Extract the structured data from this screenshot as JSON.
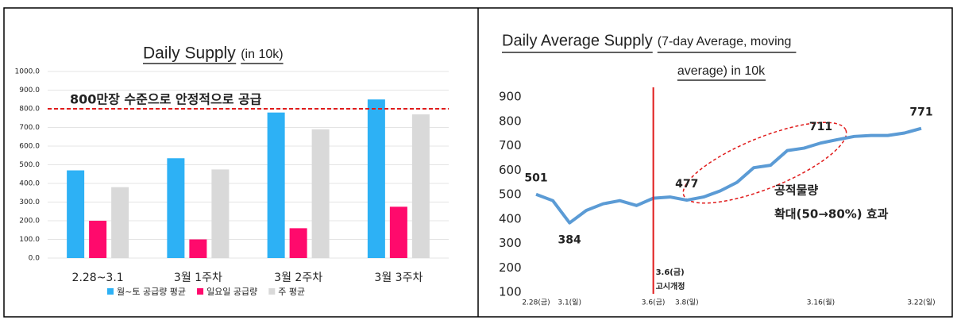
{
  "chart_data": [
    {
      "type": "bar",
      "title": "Daily Supply",
      "subtitle": "(in 10k)",
      "categories": [
        "2.28~3.1",
        "3월 1주차",
        "3월 2주차",
        "3월 3주차"
      ],
      "series": [
        {
          "name": "월~토 공급량 평균",
          "color": "#2db1f5",
          "values": [
            470,
            535,
            780,
            850
          ]
        },
        {
          "name": "일요일 공급량",
          "color": "#ff0a6c",
          "values": [
            200,
            100,
            160,
            275
          ]
        },
        {
          "name": "주 평균",
          "color": "#d9d9d9",
          "values": [
            380,
            475,
            690,
            770
          ]
        }
      ],
      "ylim": [
        0,
        1000
      ],
      "yticks": [
        {
          "value": 0,
          "label": "0.0"
        },
        {
          "value": 100,
          "label": "100.0"
        },
        {
          "value": 200,
          "label": "200.0"
        },
        {
          "value": 300,
          "label": "300.0"
        },
        {
          "value": 400,
          "label": "400.0"
        },
        {
          "value": 500,
          "label": "500.0"
        },
        {
          "value": 600,
          "label": "600.0"
        },
        {
          "value": 700,
          "label": "700.0"
        },
        {
          "value": 800,
          "label": "800.0"
        },
        {
          "value": 900,
          "label": "900.0"
        },
        {
          "value": 1000,
          "label": "1000.0"
        }
      ],
      "grid": true,
      "reference_line": {
        "y": 800,
        "label": "800만장 수준으로 안정적으로 공급",
        "color": "#e01b1b"
      },
      "legend": "bottom"
    },
    {
      "type": "line",
      "title": "Daily Average Supply",
      "subtitle": "(7-day Average, moving average) in 10k",
      "categories": [
        "2.28(금)",
        null,
        "3.1(일)",
        null,
        null,
        null,
        null,
        "3.6(금)",
        null,
        "3.8(일)",
        null,
        null,
        null,
        null,
        null,
        null,
        null,
        "3.16(월)",
        null,
        null,
        null,
        null,
        null,
        "3.22(일)"
      ],
      "series": [
        {
          "name": null,
          "color": "#5b9bd5",
          "values": [
            501,
            475,
            384,
            435,
            462,
            475,
            455,
            485,
            490,
            477,
            490,
            515,
            550,
            610,
            620,
            680,
            690,
            711,
            725,
            738,
            742,
            742,
            752,
            771
          ],
          "value_labels": [
            "501",
            null,
            "384",
            null,
            null,
            null,
            null,
            null,
            null,
            "477",
            null,
            null,
            null,
            null,
            null,
            null,
            null,
            "711",
            null,
            null,
            null,
            null,
            null,
            "771"
          ]
        }
      ],
      "ylim": [
        100,
        900
      ],
      "yticks": [
        100,
        200,
        300,
        400,
        500,
        600,
        700,
        800,
        900
      ],
      "grid": false,
      "reference_line": {
        "x": "3.6(금)",
        "label": [
          "3.6(금)",
          "고시개정"
        ],
        "color": "#e01b1b"
      },
      "annotation": [
        "공적물량",
        "확대(50→80%) 효과"
      ]
    }
  ]
}
